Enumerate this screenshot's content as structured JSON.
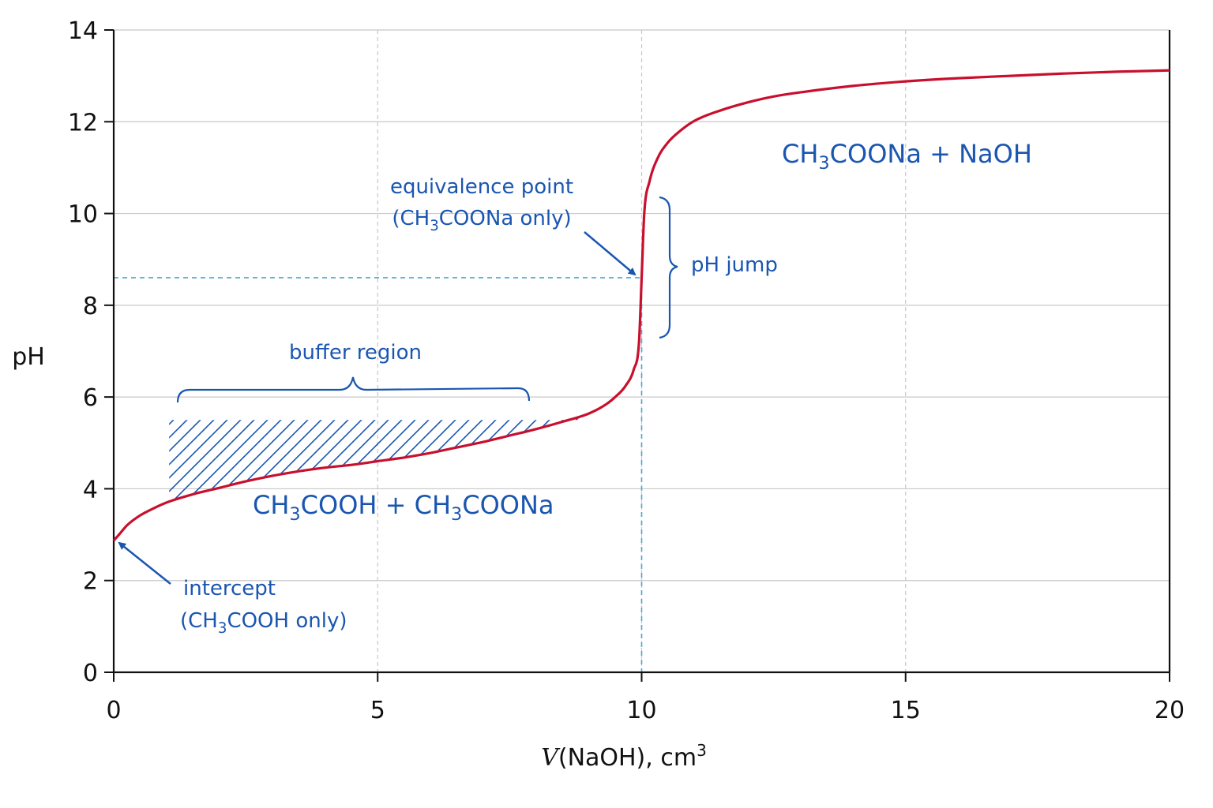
{
  "chart_data": {
    "type": "line",
    "xlabel_italic": "V",
    "xlabel_rest": "(NaOH), cm",
    "xlabel_sup": "3",
    "ylabel": "pH",
    "xlim": [
      0,
      20
    ],
    "ylim": [
      0,
      14
    ],
    "x_ticks": [
      "0",
      "5",
      "10",
      "15",
      "20"
    ],
    "y_ticks": [
      "0",
      "2",
      "4",
      "6",
      "8",
      "10",
      "12",
      "14"
    ],
    "grid": true,
    "series": [
      {
        "color": "#c8102e",
        "x": [
          0,
          0.1,
          0.25,
          0.5,
          0.75,
          1,
          1.5,
          2,
          2.5,
          3,
          3.5,
          4,
          4.5,
          5,
          5.5,
          6,
          6.5,
          7,
          7.5,
          8,
          8.5,
          9,
          9.3,
          9.5,
          9.7,
          9.85,
          9.95,
          10,
          10.05,
          10.15,
          10.3,
          10.5,
          10.75,
          11,
          11.5,
          12,
          12.5,
          13,
          14,
          15,
          16,
          17,
          18,
          19,
          20
        ],
        "y": [
          2.87,
          3.0,
          3.2,
          3.42,
          3.57,
          3.7,
          3.88,
          4.02,
          4.16,
          4.28,
          4.38,
          4.46,
          4.52,
          4.6,
          4.68,
          4.78,
          4.9,
          5.02,
          5.16,
          5.3,
          5.46,
          5.64,
          5.82,
          6.0,
          6.25,
          6.6,
          7.2,
          8.6,
          10.0,
          10.7,
          11.2,
          11.55,
          11.82,
          12.02,
          12.25,
          12.42,
          12.55,
          12.64,
          12.78,
          12.88,
          12.95,
          13.0,
          13.05,
          13.09,
          13.12
        ]
      }
    ],
    "equivalence_point": {
      "x": 10,
      "y": 8.6
    },
    "annotations": {
      "region_right": {
        "a": "CH",
        "a_sub": "3",
        "b": "COONa + NaOH"
      },
      "region_left": {
        "a": "CH",
        "a_sub": "3",
        "b": "COOH + CH",
        "b_sub": "3",
        "c": "COONa"
      },
      "equivalence_line1": "equivalence point",
      "equivalence_line2": {
        "a": "(CH",
        "a_sub": "3",
        "b": "COONa only)"
      },
      "ph_jump": "pH jump",
      "buffer_region": "buffer region",
      "intercept_line1": "intercept",
      "intercept_line2": {
        "a": "(CH",
        "a_sub": "3",
        "b": "COOH only)"
      }
    },
    "colors": {
      "curve": "#c8102e",
      "annotation": "#1a56b0",
      "guide": "#4aa8d8",
      "grid": "#c8c8c8"
    }
  }
}
